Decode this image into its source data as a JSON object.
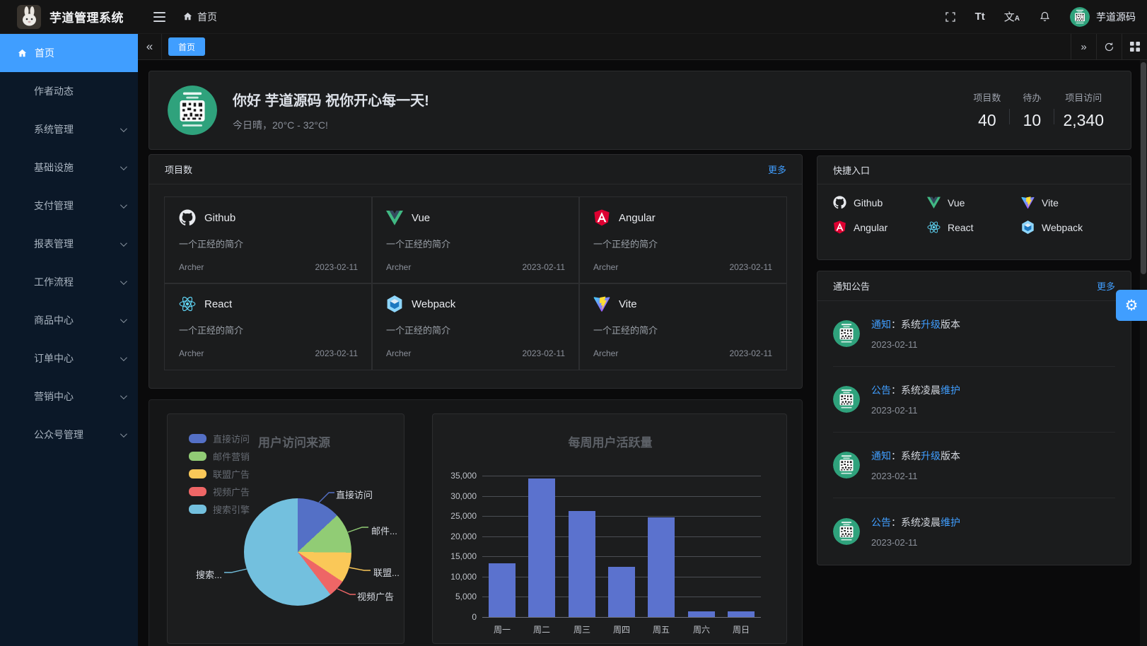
{
  "app": {
    "title": "芋道管理系统",
    "breadcrumb_home": "首页",
    "username": "芋道源码"
  },
  "tabbar": {
    "active_tab": "首页"
  },
  "sidebar": {
    "items": [
      {
        "label": "首页",
        "active": true,
        "icon": "home-icon",
        "arrow": false
      },
      {
        "label": "作者动态",
        "active": false,
        "arrow": false
      },
      {
        "label": "系统管理",
        "active": false,
        "arrow": true
      },
      {
        "label": "基础设施",
        "active": false,
        "arrow": true
      },
      {
        "label": "支付管理",
        "active": false,
        "arrow": true
      },
      {
        "label": "报表管理",
        "active": false,
        "arrow": true
      },
      {
        "label": "工作流程",
        "active": false,
        "arrow": true
      },
      {
        "label": "商品中心",
        "active": false,
        "arrow": true
      },
      {
        "label": "订单中心",
        "active": false,
        "arrow": true
      },
      {
        "label": "营销中心",
        "active": false,
        "arrow": true
      },
      {
        "label": "公众号管理",
        "active": false,
        "arrow": true
      }
    ]
  },
  "welcome": {
    "greeting": "你好 芋道源码 祝你开心每一天!",
    "weather": "今日晴，20°C - 32°C!",
    "stats": [
      {
        "label": "项目数",
        "value": "40"
      },
      {
        "label": "待办",
        "value": "10"
      },
      {
        "label": "项目访问",
        "value": "2,340"
      }
    ]
  },
  "projects": {
    "title": "项目数",
    "more_label": "更多",
    "items": [
      {
        "name": "Github",
        "icon": "github-icon",
        "desc": "一个正经的简介",
        "author": "Archer",
        "date": "2023-02-11"
      },
      {
        "name": "Vue",
        "icon": "vue-icon",
        "desc": "一个正经的简介",
        "author": "Archer",
        "date": "2023-02-11"
      },
      {
        "name": "Angular",
        "icon": "angular-icon",
        "desc": "一个正经的简介",
        "author": "Archer",
        "date": "2023-02-11"
      },
      {
        "name": "React",
        "icon": "react-icon",
        "desc": "一个正经的简介",
        "author": "Archer",
        "date": "2023-02-11"
      },
      {
        "name": "Webpack",
        "icon": "webpack-icon",
        "desc": "一个正经的简介",
        "author": "Archer",
        "date": "2023-02-11"
      },
      {
        "name": "Vite",
        "icon": "vite-icon",
        "desc": "一个正经的简介",
        "author": "Archer",
        "date": "2023-02-11"
      }
    ]
  },
  "shortcuts": {
    "title": "快捷入口",
    "items": [
      {
        "label": "Github",
        "icon": "github-icon"
      },
      {
        "label": "Vue",
        "icon": "vue-icon"
      },
      {
        "label": "Vite",
        "icon": "vite-icon"
      },
      {
        "label": "Angular",
        "icon": "angular-icon"
      },
      {
        "label": "React",
        "icon": "react-icon"
      },
      {
        "label": "Webpack",
        "icon": "webpack-icon"
      }
    ]
  },
  "notices": {
    "title": "通知公告",
    "more_label": "更多",
    "items": [
      {
        "segments": [
          {
            "text": "通知",
            "link": true
          },
          {
            "text": "：系统",
            "link": false
          },
          {
            "text": "升级",
            "link": true
          },
          {
            "text": "版本",
            "link": false
          }
        ],
        "date": "2023-02-11"
      },
      {
        "segments": [
          {
            "text": "公告",
            "link": true
          },
          {
            "text": "：系统凌晨",
            "link": false
          },
          {
            "text": "维护",
            "link": true
          }
        ],
        "date": "2023-02-11"
      },
      {
        "segments": [
          {
            "text": "通知",
            "link": true
          },
          {
            "text": "：系统",
            "link": false
          },
          {
            "text": "升级",
            "link": true
          },
          {
            "text": "版本",
            "link": false
          }
        ],
        "date": "2023-02-11"
      },
      {
        "segments": [
          {
            "text": "公告",
            "link": true
          },
          {
            "text": "：系统凌晨",
            "link": false
          },
          {
            "text": "维护",
            "link": true
          }
        ],
        "date": "2023-02-11"
      }
    ]
  },
  "chart_data": [
    {
      "type": "pie",
      "title": "用户访问来源",
      "legend_position": "top-left",
      "legend": [
        "直接访问",
        "邮件营销",
        "联盟广告",
        "视频广告",
        "搜索引擎"
      ],
      "series": [
        {
          "name": "直接访问",
          "value": 335
        },
        {
          "name": "邮件营销",
          "value": 310
        },
        {
          "name": "联盟广告",
          "value": 234
        },
        {
          "name": "视频广告",
          "value": 135
        },
        {
          "name": "搜索引擎",
          "value": 1548
        }
      ],
      "colors": [
        "#5470c6",
        "#91cc75",
        "#fac858",
        "#ee6666",
        "#73c0de"
      ],
      "callout_labels": [
        "直接访问",
        "邮件...",
        "联盟...",
        "视频广告",
        "搜索..."
      ]
    },
    {
      "type": "bar",
      "title": "每周用户活跃量",
      "categories": [
        "周一",
        "周二",
        "周三",
        "周四",
        "周五",
        "周六",
        "周日"
      ],
      "values": [
        13253,
        34235,
        26321,
        12340,
        24643,
        1322,
        1324
      ],
      "ylim": [
        0,
        35000
      ],
      "ytick_step": 5000,
      "yticks": [
        "0",
        "5,000",
        "10,000",
        "15,000",
        "20,000",
        "25,000",
        "30,000",
        "35,000"
      ],
      "bar_color": "#5b72ce",
      "grid": true,
      "legend_position": "none"
    }
  ],
  "colors": {
    "primary": "#409eff",
    "sidebar_bg": "#0b1828",
    "card_bg": "#1b1c1d",
    "page_bg": "#0a0a0b",
    "link": "#409eff"
  }
}
